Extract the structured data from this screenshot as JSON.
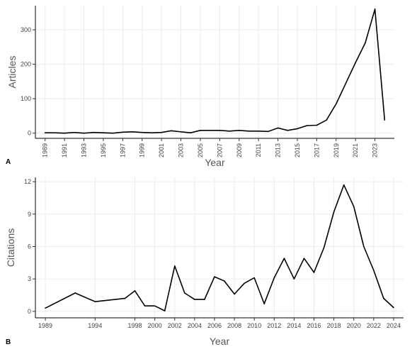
{
  "chart_data": [
    {
      "type": "line",
      "panel_label": "A",
      "xlabel": "Year",
      "ylabel": "Articles",
      "xlim": [
        1988,
        2025
      ],
      "ylim": [
        -15,
        370
      ],
      "x_ticks": [
        1989,
        1991,
        1993,
        1995,
        1997,
        1999,
        2001,
        2003,
        2005,
        2007,
        2009,
        2011,
        2013,
        2015,
        2017,
        2019,
        2021,
        2023
      ],
      "y_ticks": [
        0,
        100,
        200,
        300
      ],
      "grid": true,
      "x": [
        1989,
        1990,
        1991,
        1992,
        1993,
        1994,
        1995,
        1996,
        1997,
        1998,
        1999,
        2000,
        2001,
        2002,
        2003,
        2004,
        2005,
        2006,
        2007,
        2008,
        2009,
        2010,
        2011,
        2012,
        2013,
        2014,
        2015,
        2016,
        2017,
        2018,
        2019,
        2020,
        2021,
        2022,
        2023,
        2024
      ],
      "series": [
        {
          "values": [
            1,
            1,
            0,
            2,
            0,
            2,
            1,
            0,
            3,
            4,
            2,
            1,
            2,
            7,
            4,
            1,
            8,
            8,
            8,
            6,
            8,
            6,
            6,
            5,
            15,
            8,
            13,
            22,
            23,
            38,
            85,
            145,
            205,
            262,
            360,
            38
          ]
        }
      ]
    },
    {
      "type": "line",
      "panel_label": "B",
      "xlabel": "Year",
      "ylabel": "Citations",
      "xlim": [
        1988,
        2025
      ],
      "ylim": [
        -0.6,
        12.4
      ],
      "x_ticks": [
        1989,
        1994,
        1998,
        2000,
        2002,
        2004,
        2006,
        2008,
        2010,
        2012,
        2014,
        2016,
        2018,
        2020,
        2022,
        2024
      ],
      "y_ticks": [
        0,
        3,
        6,
        9,
        12
      ],
      "grid": true,
      "x": [
        1989,
        1992,
        1994,
        1997,
        1998,
        1999,
        2000,
        2001,
        2002,
        2003,
        2004,
        2005,
        2006,
        2007,
        2008,
        2009,
        2010,
        2011,
        2012,
        2013,
        2014,
        2015,
        2016,
        2017,
        2018,
        2019,
        2020,
        2021,
        2022,
        2023,
        2024
      ],
      "series": [
        {
          "values": [
            0.3,
            1.7,
            0.9,
            1.2,
            1.9,
            0.5,
            0.5,
            0.05,
            4.2,
            1.7,
            1.1,
            1.1,
            3.2,
            2.8,
            1.6,
            2.6,
            3.1,
            0.7,
            3.1,
            4.9,
            3.0,
            4.9,
            3.6,
            5.9,
            9.2,
            11.7,
            9.7,
            6.0,
            3.8,
            1.2,
            0.35
          ]
        }
      ]
    }
  ]
}
